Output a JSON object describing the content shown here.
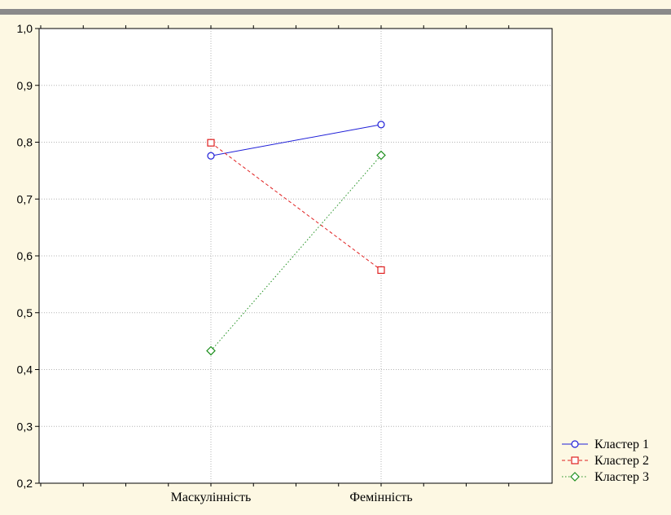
{
  "colors": {
    "background": "#fdf8e3",
    "plot_background": "#ffffff",
    "top_bar": "#8a8a8a",
    "grid": "#b4b4b4",
    "axis": "#000000"
  },
  "chart_data": {
    "type": "line",
    "categories": [
      "Маскулінність",
      "Фемінність"
    ],
    "ylim": [
      0.2,
      1.0
    ],
    "yticks": [
      "0,2",
      "0,3",
      "0,4",
      "0,5",
      "0,6",
      "0,7",
      "0,8",
      "0,9",
      "1,0"
    ],
    "grid": true,
    "legend_position": "bottom-right",
    "title": "",
    "xlabel": "",
    "ylabel": "",
    "series": [
      {
        "name": "Кластер 1",
        "values": [
          0.776,
          0.831
        ],
        "color": "#2020d8",
        "dash": "solid",
        "marker": "circle"
      },
      {
        "name": "Кластер 2",
        "values": [
          0.799,
          0.575
        ],
        "color": "#e02020",
        "dash": "dashed",
        "marker": "square"
      },
      {
        "name": "Кластер 3",
        "values": [
          0.433,
          0.777
        ],
        "color": "#209020",
        "dash": "dotted",
        "marker": "diamond"
      }
    ]
  }
}
